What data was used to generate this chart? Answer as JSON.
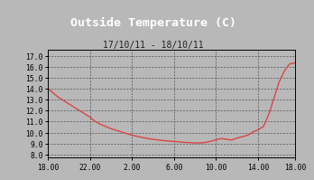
{
  "title": "Outside Temperature (C)",
  "subtitle": "17/10/11 - 18/10/11",
  "bg_color": "#b8b8b8",
  "title_bg_color": "#000000",
  "title_text_color": "#ffffff",
  "subtitle_text_color": "#222222",
  "line_color": "#dd4444",
  "grid_color": "#444444",
  "plot_bg_color": "#b8b8b8",
  "x_tick_labels": [
    "18.00",
    "22.00",
    "2.00",
    "6.00",
    "10.00",
    "14.00",
    "18.00"
  ],
  "y_ticks": [
    8.0,
    9.0,
    10.0,
    11.0,
    12.0,
    13.0,
    14.0,
    15.0,
    16.0,
    17.0
  ],
  "ylim": [
    7.7,
    17.5
  ],
  "xlim": [
    0,
    47
  ],
  "x_tick_pos": [
    0,
    8,
    16,
    24,
    32,
    40,
    47
  ],
  "y_data": [
    14.0,
    13.6,
    13.2,
    12.9,
    12.6,
    12.3,
    12.0,
    11.7,
    11.4,
    11.0,
    10.75,
    10.55,
    10.35,
    10.2,
    10.05,
    9.9,
    9.75,
    9.65,
    9.55,
    9.45,
    9.38,
    9.32,
    9.27,
    9.22,
    9.18,
    9.15,
    9.1,
    9.08,
    9.05,
    9.05,
    9.1,
    9.2,
    9.35,
    9.45,
    9.38,
    9.32,
    9.5,
    9.62,
    9.75,
    10.05,
    10.25,
    10.55,
    11.6,
    13.1,
    14.6,
    15.6,
    16.25,
    16.35
  ]
}
